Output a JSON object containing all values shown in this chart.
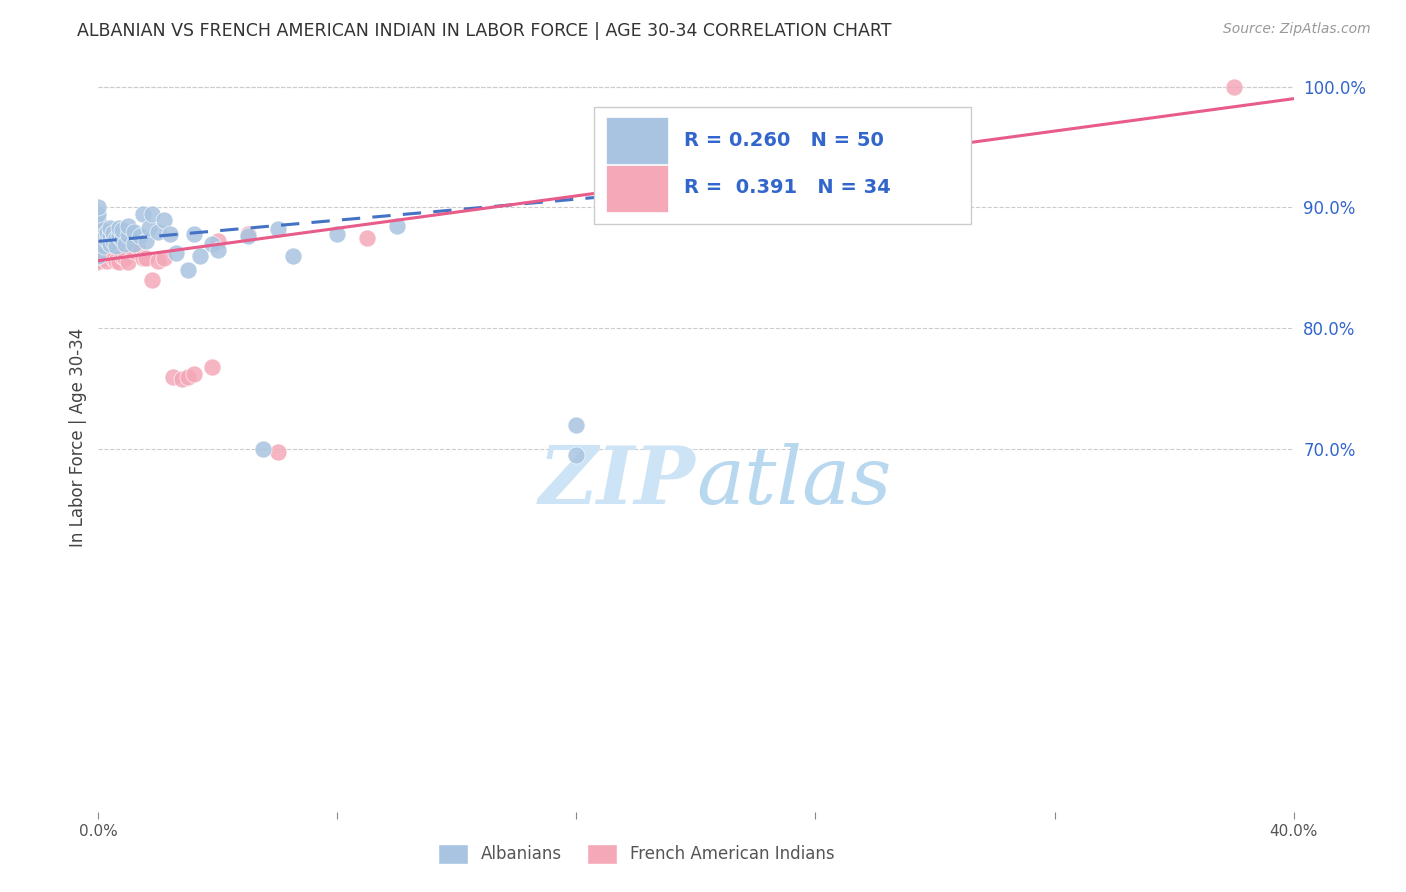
{
  "title": "ALBANIAN VS FRENCH AMERICAN INDIAN IN LABOR FORCE | AGE 30-34 CORRELATION CHART",
  "source": "Source: ZipAtlas.com",
  "ylabel": "In Labor Force | Age 30-34",
  "xmin": 0.0,
  "xmax": 0.4,
  "ymin": 0.4,
  "ymax": 1.02,
  "y_ticks_right": [
    0.7,
    0.8,
    0.9,
    1.0
  ],
  "y_tick_labels_right": [
    "70.0%",
    "80.0%",
    "90.0%",
    "100.0%"
  ],
  "grid_color": "#cccccc",
  "background_color": "#ffffff",
  "albanian_color": "#a8c4e0",
  "albanian_edge_color": "#7aafd4",
  "french_color": "#f4a8b8",
  "french_edge_color": "#e87898",
  "albanian_R": 0.26,
  "albanian_N": 50,
  "french_R": 0.391,
  "french_N": 34,
  "albanian_line_color": "#4472c4",
  "french_line_color": "#e85c8a",
  "watermark_color": "#d8edf8",
  "legend_color": "#3366cc",
  "albanian_x": [
    0.0,
    0.0,
    0.0,
    0.0,
    0.0,
    0.0,
    0.0,
    0.0,
    0.002,
    0.002,
    0.003,
    0.003,
    0.004,
    0.004,
    0.004,
    0.005,
    0.005,
    0.006,
    0.006,
    0.007,
    0.007,
    0.008,
    0.008,
    0.009,
    0.01,
    0.01,
    0.012,
    0.012,
    0.014,
    0.015,
    0.016,
    0.017,
    0.018,
    0.02,
    0.022,
    0.024,
    0.026,
    0.03,
    0.032,
    0.034,
    0.038,
    0.04,
    0.05,
    0.055,
    0.06,
    0.065,
    0.08,
    0.1,
    0.16,
    0.16
  ],
  "albanian_y": [
    0.87,
    0.875,
    0.88,
    0.885,
    0.89,
    0.895,
    0.9,
    0.86,
    0.875,
    0.868,
    0.873,
    0.88,
    0.87,
    0.877,
    0.883,
    0.872,
    0.879,
    0.875,
    0.868,
    0.876,
    0.883,
    0.874,
    0.881,
    0.87,
    0.877,
    0.885,
    0.87,
    0.88,
    0.876,
    0.895,
    0.872,
    0.883,
    0.895,
    0.88,
    0.89,
    0.878,
    0.862,
    0.848,
    0.878,
    0.86,
    0.87,
    0.865,
    0.876,
    0.7,
    0.882,
    0.86,
    0.878,
    0.885,
    0.695,
    0.72
  ],
  "french_x": [
    0.0,
    0.0,
    0.0,
    0.0,
    0.0,
    0.0,
    0.0,
    0.0,
    0.002,
    0.003,
    0.004,
    0.005,
    0.006,
    0.007,
    0.008,
    0.009,
    0.01,
    0.012,
    0.013,
    0.015,
    0.016,
    0.018,
    0.02,
    0.022,
    0.025,
    0.028,
    0.03,
    0.032,
    0.038,
    0.04,
    0.05,
    0.06,
    0.09,
    0.38
  ],
  "french_y": [
    0.855,
    0.862,
    0.868,
    0.873,
    0.877,
    0.856,
    0.862,
    0.882,
    0.858,
    0.856,
    0.862,
    0.858,
    0.856,
    0.855,
    0.86,
    0.858,
    0.855,
    0.864,
    0.868,
    0.858,
    0.858,
    0.84,
    0.856,
    0.858,
    0.76,
    0.758,
    0.76,
    0.762,
    0.768,
    0.872,
    0.878,
    0.698,
    0.875,
    1.0
  ],
  "alb_line_x0": 0.0,
  "alb_line_y0": 0.872,
  "alb_line_x1": 0.22,
  "alb_line_y1": 0.92,
  "fre_line_x0": 0.0,
  "fre_line_y0": 0.856,
  "fre_line_x1": 0.4,
  "fre_line_y1": 0.99
}
